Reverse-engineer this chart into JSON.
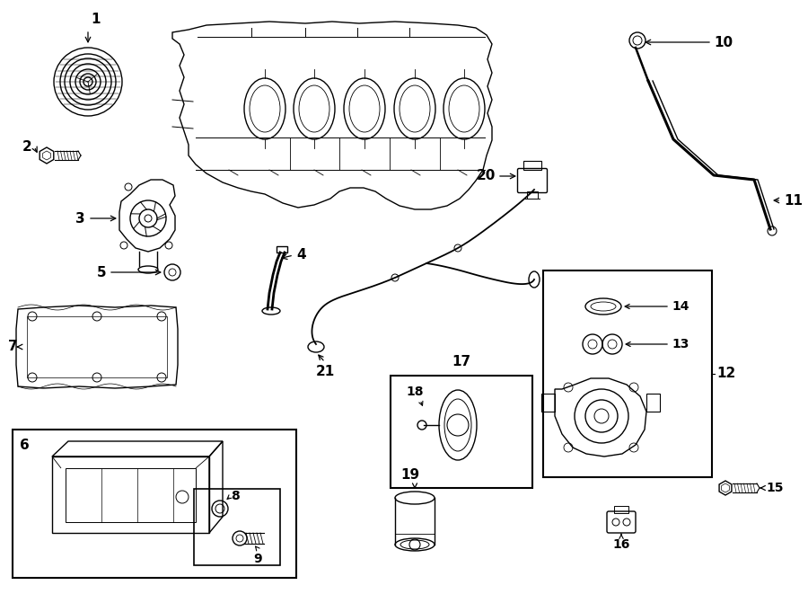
{
  "bg_color": "#ffffff",
  "lc": "#000000",
  "lw": 1.0,
  "figsize": [
    9.0,
    6.61
  ],
  "dpi": 100
}
